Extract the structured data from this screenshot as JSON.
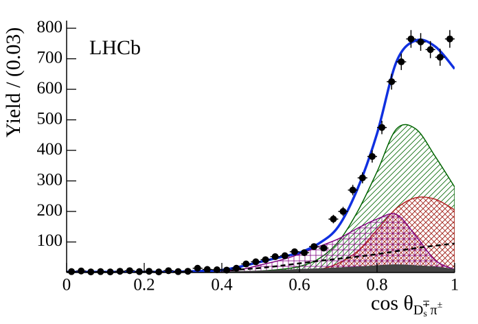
{
  "chart_data": {
    "type": "scatter",
    "title": "LHCb",
    "ylabel": "Yield / (0.03)",
    "xlabel": [
      "cos θ",
      "D",
      "s",
      "∓",
      "π",
      "±"
    ],
    "xlim": [
      0,
      1
    ],
    "ylim": [
      0,
      825
    ],
    "xticks": [
      0,
      0.2,
      0.4,
      0.6,
      0.8,
      1
    ],
    "yticks": [
      100,
      200,
      300,
      400,
      500,
      600,
      700,
      800
    ],
    "color": "#000000",
    "x": [
      0.0125,
      0.0375,
      0.0625,
      0.0875,
      0.1125,
      0.1375,
      0.1625,
      0.1875,
      0.2125,
      0.2375,
      0.2625,
      0.2875,
      0.3125,
      0.3375,
      0.3625,
      0.3875,
      0.4125,
      0.4375,
      0.4625,
      0.4875,
      0.5125,
      0.5375,
      0.5625,
      0.5875,
      0.6125,
      0.6375,
      0.6625,
      0.6875,
      0.7125,
      0.7375,
      0.7625,
      0.7875,
      0.8125,
      0.8375,
      0.8625,
      0.8875,
      0.9125,
      0.9375,
      0.9625,
      0.9875
    ],
    "values": [
      3,
      5,
      2,
      3,
      2,
      4,
      6,
      3,
      4,
      2,
      6,
      3,
      4,
      14,
      10,
      9,
      8,
      14,
      28,
      35,
      42,
      52,
      55,
      68,
      65,
      85,
      80,
      175,
      200,
      270,
      310,
      380,
      475,
      625,
      690,
      765,
      755,
      730,
      705,
      765
    ],
    "errors": [
      2,
      2,
      1,
      2,
      1,
      2,
      2,
      2,
      2,
      1,
      2,
      2,
      2,
      4,
      3,
      3,
      3,
      4,
      5,
      6,
      7,
      8,
      8,
      9,
      9,
      10,
      10,
      14,
      15,
      17,
      18,
      20,
      22,
      26,
      27,
      29,
      29,
      28,
      28,
      29
    ],
    "xerr": 0.0125,
    "curves": {
      "x": [
        0,
        0.05,
        0.1,
        0.15,
        0.2,
        0.25,
        0.3,
        0.35,
        0.4,
        0.45,
        0.5,
        0.55,
        0.6,
        0.65,
        0.7,
        0.75,
        0.8,
        0.85,
        0.9,
        0.95,
        1
      ],
      "series": [
        {
          "color": "#006400",
          "style": "hatch-diag",
          "values": [
            0,
            0,
            0,
            0,
            0,
            0,
            0,
            0,
            0,
            0,
            5,
            10,
            20,
            45,
            100,
            200,
            330,
            470,
            470,
            380,
            280
          ]
        },
        {
          "color": "#b22222",
          "style": "hatch-cross",
          "values": [
            0,
            0,
            0,
            0,
            0,
            0,
            0,
            0,
            0,
            0,
            0,
            0,
            5,
            10,
            30,
            70,
            140,
            210,
            245,
            240,
            205
          ]
        },
        {
          "color": "#800080",
          "style": "hatch-grid",
          "values": [
            0,
            0,
            0,
            0,
            0,
            0,
            0,
            0,
            3,
            10,
            25,
            40,
            60,
            85,
            110,
            145,
            175,
            190,
            120,
            40,
            10
          ]
        },
        {
          "color": "#444444",
          "style": "filled",
          "values": [
            0,
            0,
            0,
            0,
            0,
            0,
            0,
            0,
            2,
            3,
            5,
            7,
            10,
            12,
            15,
            18,
            22,
            25,
            22,
            18,
            10
          ]
        },
        {
          "color": "#000000",
          "style": "dashed",
          "values": [
            0,
            0,
            0,
            0,
            0,
            0,
            0,
            0,
            5,
            10,
            15,
            22,
            30,
            38,
            45,
            52,
            60,
            70,
            80,
            88,
            95
          ]
        },
        {
          "color": "#1030e0",
          "style": "line",
          "values": [
            2,
            2,
            2,
            2,
            2,
            2,
            3,
            5,
            8,
            20,
            35,
            50,
            65,
            95,
            150,
            275,
            455,
            690,
            760,
            740,
            667
          ]
        }
      ]
    }
  }
}
